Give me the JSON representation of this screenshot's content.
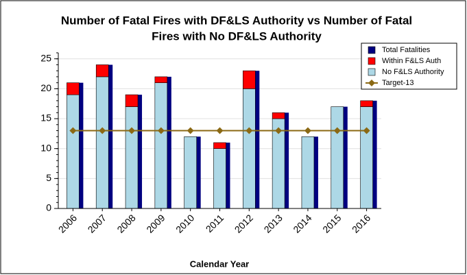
{
  "chart_data": {
    "type": "bar",
    "title": [
      "Number of Fatal Fires with DF&LS Authority vs Number of Fatal",
      "Fires with No DF&LS Authority"
    ],
    "x_label": "Calendar Year",
    "categories": [
      "2006",
      "2007",
      "2008",
      "2009",
      "2010",
      "2011",
      "2012",
      "2013",
      "2014",
      "2015",
      "2016"
    ],
    "series": [
      {
        "name": "Total Fatalities",
        "color": "#000080",
        "role": "total",
        "values": [
          21,
          24,
          19,
          22,
          12,
          11,
          23,
          16,
          12,
          17,
          18
        ]
      },
      {
        "name": "Within F&LS Auth",
        "color": "#ff0000",
        "role": "stack-top",
        "values": [
          2,
          2,
          2,
          1,
          0,
          1,
          3,
          1,
          0,
          0,
          1
        ]
      },
      {
        "name": "No F&LS Authority",
        "color": "#add8e6",
        "role": "stack-base",
        "values": [
          19,
          22,
          17,
          21,
          12,
          10,
          20,
          15,
          12,
          17,
          17
        ]
      },
      {
        "name": "Target-13",
        "color": "#8b6914",
        "role": "line",
        "values": [
          13,
          13,
          13,
          13,
          13,
          13,
          13,
          13,
          13,
          13,
          13
        ]
      }
    ],
    "ylim": [
      0,
      26
    ],
    "yticks": [
      0,
      5,
      10,
      15,
      20,
      25
    ],
    "grid": true,
    "legend": "upper right"
  }
}
